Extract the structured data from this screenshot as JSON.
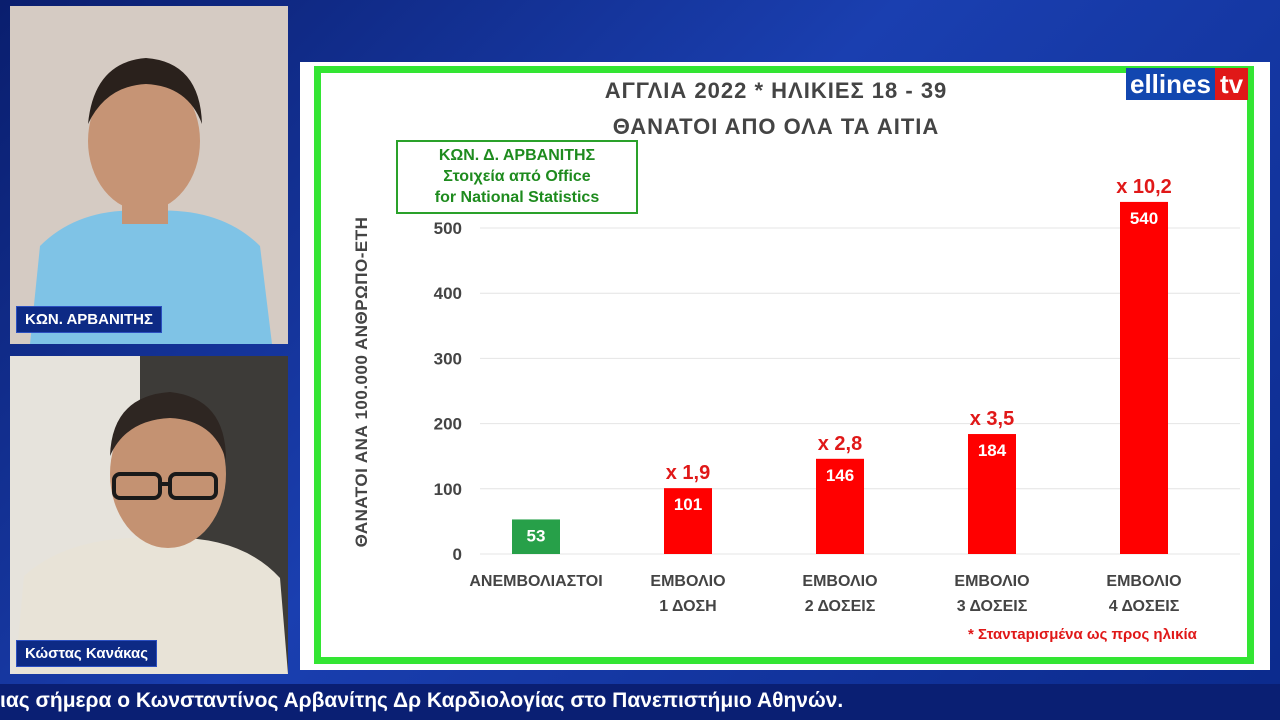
{
  "speakers": {
    "top_name": "ΚΩΝ. ΑΡΒΑΝΙΤΗΣ",
    "bottom_name": "Κώστας Κανάκας"
  },
  "logo": {
    "part1": "ellines",
    "part2": "tv"
  },
  "source_box": {
    "line1": "ΚΩΝ. Δ. ΑΡΒΑΝΙΤΗΣ",
    "line2": "Στοιχεία από Office",
    "line3": "for National Statistics"
  },
  "footnote": "* Σταντарισμένα ως προς ηλικία",
  "ticker": "ιας σήμερα ο Κωνσταντίνος Αρβανίτης Δρ Καρδιολογίας στο Πανεπιστήμιο Αθηνών.",
  "colors": {
    "baseline": "#27a049",
    "vaccinated": "#ff0000",
    "frame": "#33e533"
  },
  "chart_data": {
    "type": "bar",
    "title": "ΑΓΓΛΙΑ 2022 * ΗΛΙΚΙΕΣ 18 - 39",
    "subtitle": "ΘΑΝΑΤΟΙ ΑΠΟ ΟΛΑ ΤΑ ΑΙΤΙΑ",
    "ylabel": "ΘΑΝΑΤΟΙ ΑΝΑ 100.000 ΑΝΘΡΩΠΟ-ΕΤΗ",
    "xlabel": "",
    "ylim": [
      0,
      500
    ],
    "yticks": [
      0,
      100,
      200,
      300,
      400,
      500
    ],
    "grid": true,
    "categories": [
      [
        "ΑΝΕΜΒΟΛΙΑΣΤΟΙ"
      ],
      [
        "ΕΜΒΟΛΙΟ",
        "1 ΔΟΣΗ"
      ],
      [
        "ΕΜΒΟΛΙΟ",
        "2 ΔΟΣΕΙΣ"
      ],
      [
        "ΕΜΒΟΛΙΟ",
        "3 ΔΟΣΕΙΣ"
      ],
      [
        "ΕΜΒΟΛΙΟ",
        "4 ΔΟΣΕΙΣ"
      ]
    ],
    "values": [
      53,
      101,
      146,
      184,
      540
    ],
    "multipliers": [
      "",
      "x 1,9",
      "x 2,8",
      "x 3,5",
      "x 10,2"
    ]
  }
}
